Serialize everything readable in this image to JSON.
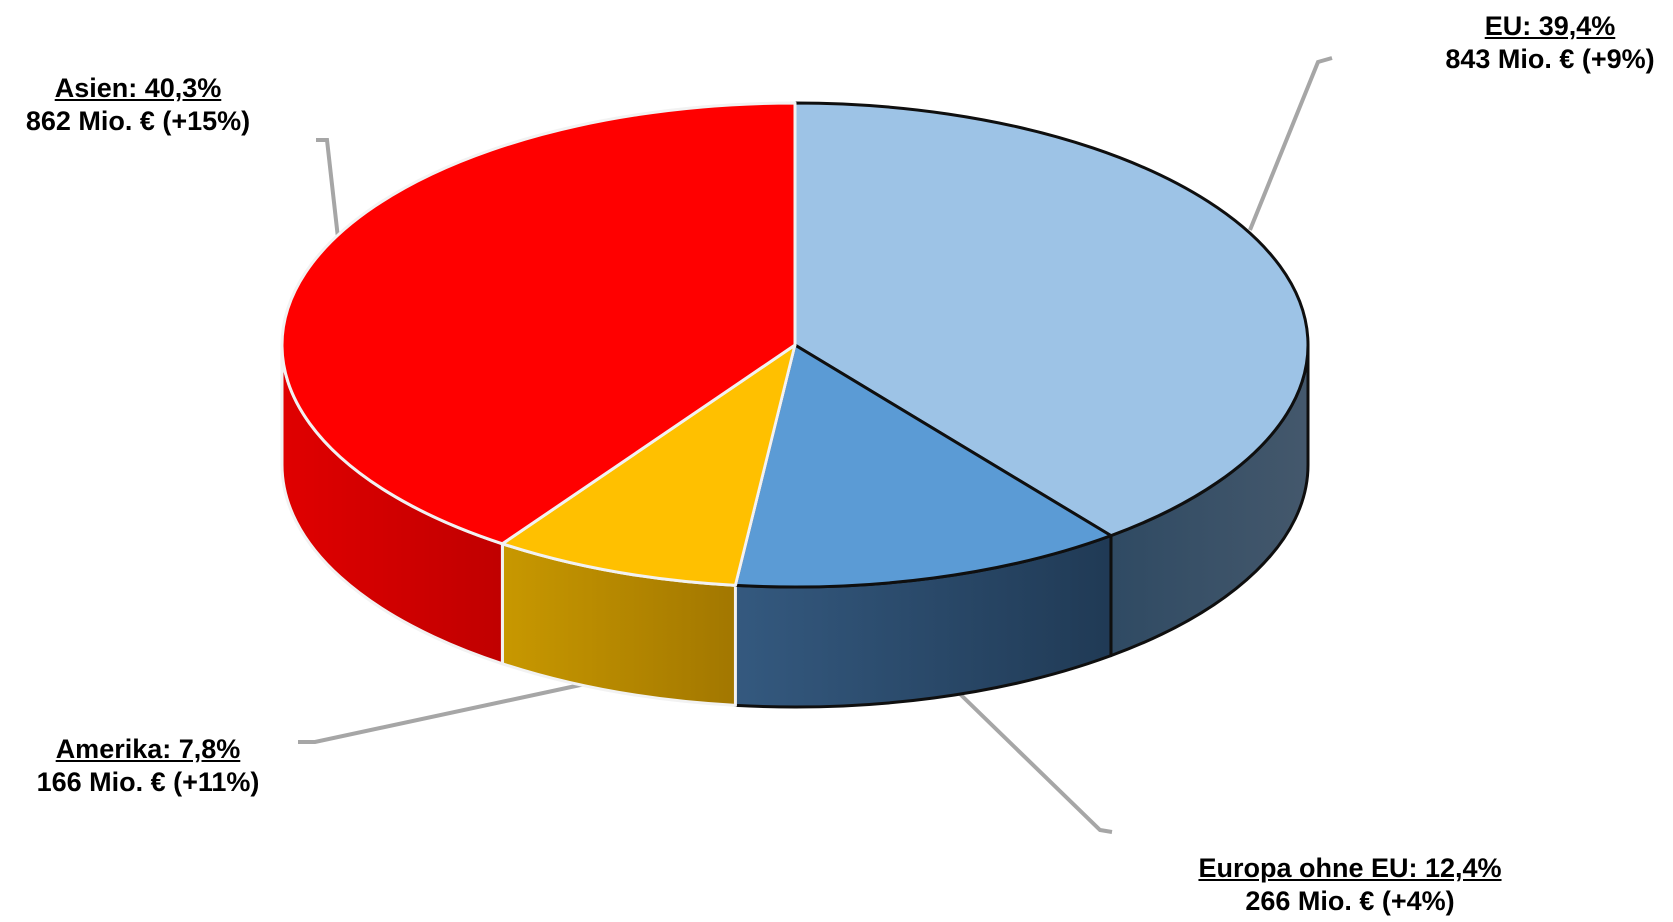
{
  "chart_data": {
    "type": "pie",
    "title": "",
    "style": "3d-tilted",
    "legend": "none",
    "slices": [
      {
        "name": "EU",
        "percent": 39.4,
        "label": "EU: 39,4%",
        "amount_label": "843 Mio. € (+9%)",
        "value_mio_eur": 843,
        "change_pct": 9,
        "color": "#9dc3e6"
      },
      {
        "name": "Europa ohne EU",
        "percent": 12.4,
        "label": "Europa ohne EU: 12,4%",
        "amount_label": "266 Mio. € (+4%)",
        "value_mio_eur": 266,
        "change_pct": 4,
        "color": "#5b9bd5"
      },
      {
        "name": "Amerika",
        "percent": 7.8,
        "label": "Amerika: 7,8%",
        "amount_label": "166 Mio. € (+11%)",
        "value_mio_eur": 166,
        "change_pct": 11,
        "color": "#ffc000"
      },
      {
        "name": "Asien",
        "percent": 40.3,
        "label": "Asien: 40,3%",
        "amount_label": "862 Mio. € (+15%)",
        "value_mio_eur": 862,
        "change_pct": 15,
        "color": "#ff0000"
      }
    ]
  }
}
